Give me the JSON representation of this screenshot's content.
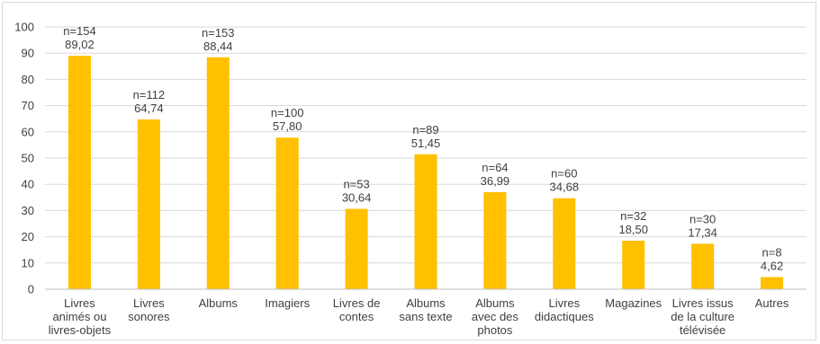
{
  "chart_data": {
    "type": "bar",
    "title": "",
    "xlabel": "",
    "ylabel": "",
    "ylim": [
      0,
      100
    ],
    "yticks": [
      0,
      10,
      20,
      30,
      40,
      50,
      60,
      70,
      80,
      90,
      100
    ],
    "grid": true,
    "legend": "none",
    "bar_color": "#FFC000",
    "categories": [
      [
        "Livres",
        "animés ou",
        "livres-objets"
      ],
      [
        "Livres",
        "sonores"
      ],
      [
        "Albums"
      ],
      [
        "Imagiers"
      ],
      [
        "Livres de",
        "contes"
      ],
      [
        "Albums",
        "sans texte"
      ],
      [
        "Albums",
        "avec des",
        "photos"
      ],
      [
        "Livres",
        "didactiques"
      ],
      [
        "Magazines"
      ],
      [
        "Livres issus",
        "de la culture",
        "télévisée"
      ],
      [
        "Autres"
      ]
    ],
    "values": [
      89.02,
      64.74,
      88.44,
      57.8,
      30.64,
      51.45,
      36.99,
      34.68,
      18.5,
      17.34,
      4.62
    ],
    "data_labels": [
      [
        "n=154",
        "89,02"
      ],
      [
        "n=112",
        "64,74"
      ],
      [
        "n=153",
        "88,44"
      ],
      [
        "n=100",
        "57,80"
      ],
      [
        "n=53",
        "30,64"
      ],
      [
        "n=89",
        "51,45"
      ],
      [
        "n=64",
        "36,99"
      ],
      [
        "n=60",
        "34,68"
      ],
      [
        "n=32",
        "18,50"
      ],
      [
        "n=30",
        "17,34"
      ],
      [
        "n=8",
        "4,62"
      ]
    ]
  }
}
